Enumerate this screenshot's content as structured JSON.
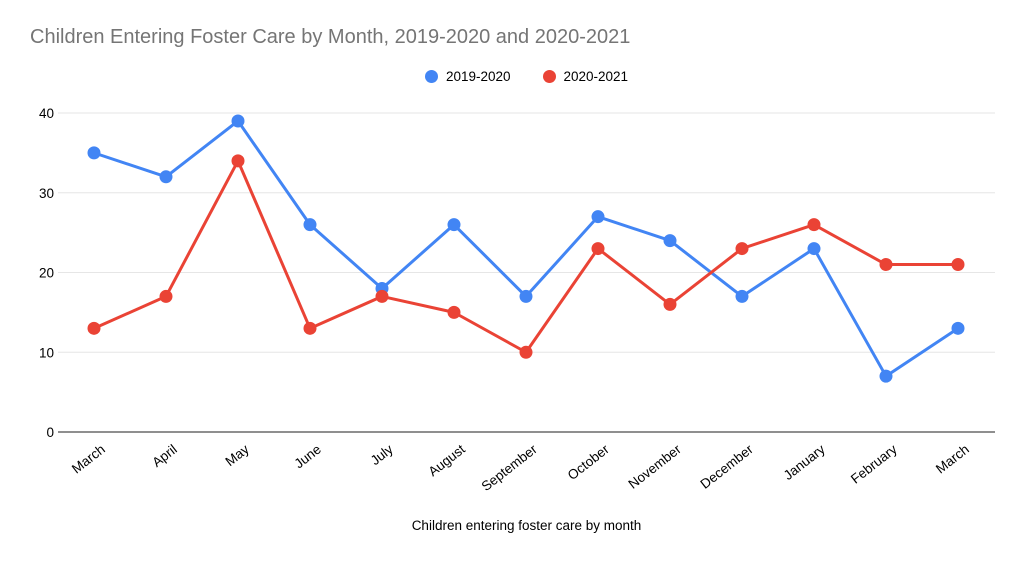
{
  "page": {
    "background": "#ffffff"
  },
  "chart_data": {
    "type": "line",
    "title": "Children Entering Foster Care by Month, 2019-2020 and 2020-2021",
    "title_color": "#757575",
    "xlabel": "Children entering foster care by month",
    "ylabel": "",
    "categories": [
      "March",
      "April",
      "May",
      "June",
      "July",
      "August",
      "September",
      "October",
      "November",
      "December",
      "January",
      "February",
      "March"
    ],
    "series": [
      {
        "name": "2019-2020",
        "color": "#4285F4",
        "values": [
          35,
          32,
          39,
          26,
          18,
          26,
          17,
          27,
          24,
          17,
          23,
          7,
          13
        ]
      },
      {
        "name": "2020-2021",
        "color": "#EA4335",
        "values": [
          13,
          17,
          34,
          13,
          17,
          15,
          10,
          23,
          16,
          23,
          26,
          21,
          21
        ]
      }
    ],
    "ylim": [
      0,
      40
    ],
    "yticks": [
      0,
      10,
      20,
      30,
      40
    ],
    "grid": true,
    "gridline_color": "#e6e6e6",
    "axis_color": "#8f8f8f",
    "tick_label_color": "#000000",
    "x_label_rotation_deg": -38,
    "legend_position": "top"
  }
}
